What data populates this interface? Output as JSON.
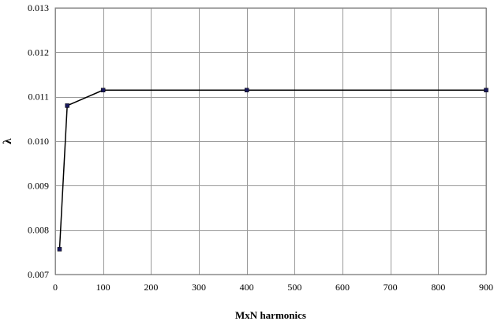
{
  "chart_data": {
    "type": "scatter",
    "title": "",
    "xlabel": "MxN harmonics",
    "ylabel": "λ",
    "xlim": [
      0,
      900
    ],
    "ylim": [
      0.007,
      0.013
    ],
    "x_ticks": [
      "0",
      "100",
      "200",
      "300",
      "400",
      "500",
      "600",
      "700",
      "800",
      "900"
    ],
    "y_ticks": [
      "0.007",
      "0.008",
      "0.009",
      "0.010",
      "0.011",
      "0.012",
      "0.013"
    ],
    "grid": true,
    "series": [
      {
        "x": [
          9,
          25,
          100,
          400,
          900
        ],
        "y": [
          0.00757,
          0.0108,
          0.01115,
          0.01115,
          0.01115
        ],
        "line_color": "#000000",
        "marker_color": "#1a1a5e"
      }
    ]
  }
}
